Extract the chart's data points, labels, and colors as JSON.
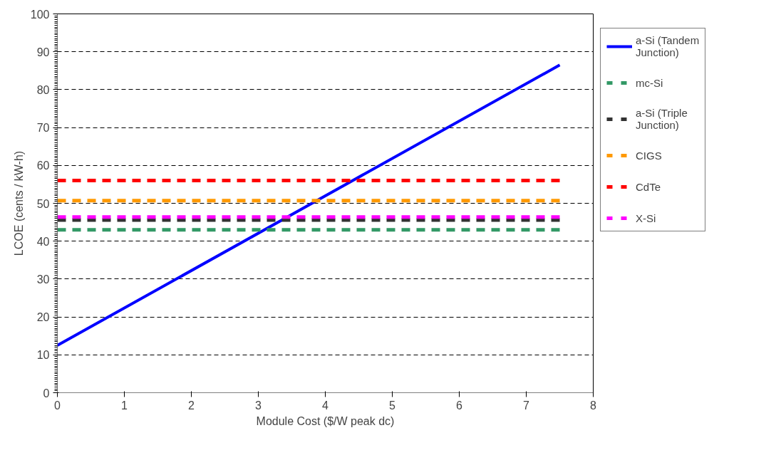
{
  "chart_data": {
    "type": "line",
    "xlabel": "Module Cost ($/W peak dc)",
    "ylabel": "LCOE (cents / kW-h)",
    "xlim": [
      0,
      8
    ],
    "ylim": [
      0,
      100
    ],
    "xticks": [
      0,
      1,
      2,
      3,
      4,
      5,
      6,
      7,
      8
    ],
    "yticks": [
      0,
      10,
      20,
      30,
      40,
      50,
      60,
      70,
      80,
      90,
      100
    ],
    "grid": "y",
    "legend": "right",
    "marker": "none",
    "x": [
      0,
      7.5
    ],
    "series": [
      {
        "name": "a-Si (Tandem Junction)",
        "color": "#0000ff",
        "values": [
          12.5,
          86.5
        ],
        "line_style": "solid"
      },
      {
        "name": "mc-Si",
        "color": "#339966",
        "values": [
          43,
          43
        ],
        "line_style": "dashed"
      },
      {
        "name": "a-Si (Triple Junction)",
        "color": "#333333",
        "values": [
          45.6,
          45.6
        ],
        "line_style": "dashed"
      },
      {
        "name": "CIGS",
        "color": "#ff9900",
        "values": [
          50.7,
          50.7
        ],
        "line_style": "dashed"
      },
      {
        "name": "CdTe",
        "color": "#ff0000",
        "values": [
          56,
          56
        ],
        "line_style": "dashed"
      },
      {
        "name": "X-Si",
        "color": "#ff00ff",
        "values": [
          46.4,
          46.4
        ],
        "line_style": "dashed"
      }
    ]
  }
}
